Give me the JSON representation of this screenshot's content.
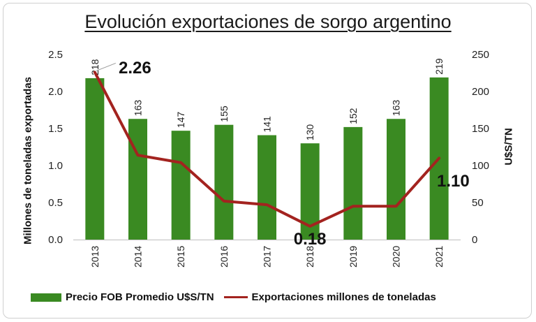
{
  "chart_data": {
    "type": "bar",
    "title": "Evolución exportaciones de sorgo argentino",
    "categories": [
      "2013",
      "2014",
      "2015",
      "2016",
      "2017",
      "2018",
      "2019",
      "2020",
      "2021"
    ],
    "ylabel_left": "Millones de toneladas exportadas",
    "ylabel_right": "U$S/TN",
    "ylim_left": [
      0,
      2.5
    ],
    "ylim_right": [
      0,
      250
    ],
    "left_ticks": [
      "0.0",
      "0.5",
      "1.0",
      "1.5",
      "2.0",
      "2.5"
    ],
    "right_ticks": [
      "0",
      "50",
      "100",
      "150",
      "200",
      "250"
    ],
    "series": [
      {
        "name": "Precio FOB Promedio U$S/TN",
        "type": "bar",
        "axis": "right",
        "color": "#3a8a22",
        "values": [
          218,
          163,
          147,
          155,
          141,
          130,
          152,
          163,
          219
        ],
        "labels": [
          "218",
          "163",
          "147",
          "155",
          "141",
          "130",
          "152",
          "163",
          "219"
        ]
      },
      {
        "name": "Exportaciones millones de toneladas",
        "type": "line",
        "axis": "left",
        "color": "#a3231f",
        "values": [
          2.26,
          1.14,
          1.04,
          0.52,
          0.47,
          0.18,
          0.45,
          0.45,
          1.1
        ]
      }
    ],
    "annotations": [
      "2.26",
      "0.18",
      "1.10"
    ],
    "grid": false,
    "legend_position": "bottom"
  }
}
